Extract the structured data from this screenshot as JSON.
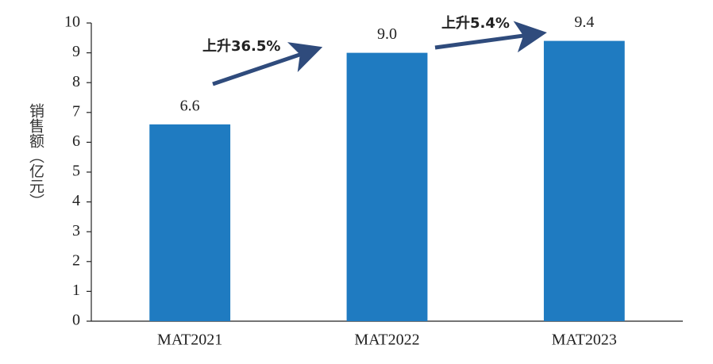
{
  "chart_data": {
    "type": "bar",
    "y_label": "销售额（亿元）",
    "categories": [
      "MAT2021",
      "MAT2022",
      "MAT2023"
    ],
    "values": [
      6.6,
      9.0,
      9.4
    ],
    "value_labels": [
      "6.6",
      "9.0",
      "9.4"
    ],
    "color": "#1f7bc1",
    "ylim": [
      0,
      10
    ],
    "yticks": [
      0,
      1,
      2,
      3,
      4,
      5,
      6,
      7,
      8,
      9,
      10
    ],
    "grid": false,
    "annotations": [
      "上升36.5%",
      "上升5.4%"
    ]
  }
}
